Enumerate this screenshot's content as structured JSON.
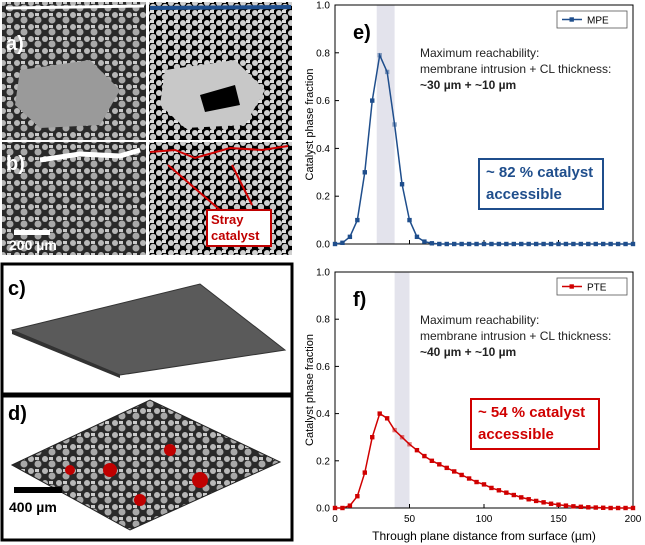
{
  "panels": {
    "a": "a)",
    "b": "b)",
    "scale_b": "200 µm",
    "stray": "Stray catalyst",
    "c": "c)",
    "d": "d)",
    "scale_d": "400 µm"
  },
  "chart_data": [
    {
      "type": "line",
      "panel_label": "e)",
      "ylabel": "Catalyst phase fraction",
      "x": [
        0,
        5,
        10,
        15,
        20,
        25,
        30,
        35,
        40,
        45,
        50,
        55,
        60,
        65,
        70,
        75,
        80,
        85,
        90,
        95,
        100,
        105,
        110,
        115,
        120,
        125,
        130,
        135,
        140,
        145,
        150,
        155,
        160,
        165,
        170,
        175,
        180,
        185,
        190,
        195,
        200
      ],
      "series": [
        {
          "name": "MPE",
          "color": "#1f4e8c",
          "values": [
            0,
            0.005,
            0.03,
            0.1,
            0.3,
            0.6,
            0.79,
            0.72,
            0.5,
            0.25,
            0.1,
            0.03,
            0.01,
            0.003,
            0,
            0,
            0,
            0,
            0,
            0,
            0,
            0,
            0,
            0,
            0,
            0,
            0,
            0,
            0,
            0,
            0,
            0,
            0,
            0,
            0,
            0,
            0,
            0,
            0,
            0,
            0
          ]
        }
      ],
      "xlim": [
        0,
        200
      ],
      "xticks": [
        0,
        50,
        100,
        150,
        200
      ],
      "xtick_labels": false,
      "ylim": [
        0,
        1.0
      ],
      "yticks": [
        {
          "value": 0,
          "label": "0.0"
        },
        0.2,
        0.4,
        0.6,
        0.8,
        {
          "value": 1.0,
          "label": "1.0"
        }
      ],
      "highlight_x": [
        28,
        40
      ],
      "legend": "upper right",
      "annotation": [
        "Maximum reachability:",
        "membrane intrusion + CL thickness:",
        "~30 µm + ~10 µm"
      ],
      "callout": "~ 82 % catalyst accessible"
    },
    {
      "type": "line",
      "panel_label": "f)",
      "ylabel": "Catalyst phase fraction",
      "xlabel": "Through plane distance from surface (µm)",
      "x": [
        0,
        5,
        10,
        15,
        20,
        25,
        30,
        35,
        40,
        45,
        50,
        55,
        60,
        65,
        70,
        75,
        80,
        85,
        90,
        95,
        100,
        105,
        110,
        115,
        120,
        125,
        130,
        135,
        140,
        145,
        150,
        155,
        160,
        165,
        170,
        175,
        180,
        185,
        190,
        195,
        200
      ],
      "series": [
        {
          "name": "PTE",
          "color": "#d00000",
          "values": [
            0,
            0,
            0.01,
            0.05,
            0.15,
            0.3,
            0.4,
            0.38,
            0.33,
            0.3,
            0.27,
            0.245,
            0.22,
            0.2,
            0.185,
            0.17,
            0.155,
            0.14,
            0.125,
            0.11,
            0.1,
            0.085,
            0.075,
            0.065,
            0.055,
            0.045,
            0.037,
            0.03,
            0.024,
            0.018,
            0.014,
            0.01,
            0.007,
            0.005,
            0.003,
            0.002,
            0.001,
            0,
            0,
            0,
            0
          ]
        }
      ],
      "xlim": [
        0,
        200
      ],
      "xticks": [
        0,
        50,
        100,
        150,
        200
      ],
      "xtick_labels": true,
      "ylim": [
        0,
        1.0
      ],
      "yticks": [
        {
          "value": 0,
          "label": "0.0"
        },
        0.2,
        0.4,
        0.6,
        0.8,
        {
          "value": 1.0,
          "label": "1.0"
        }
      ],
      "highlight_x": [
        40,
        50
      ],
      "legend": "upper right",
      "annotation": [
        "Maximum reachability:",
        "membrane intrusion + CL thickness:",
        "~40 µm + ~10 µm"
      ],
      "callout": "~ 54 % catalyst accessible"
    }
  ]
}
